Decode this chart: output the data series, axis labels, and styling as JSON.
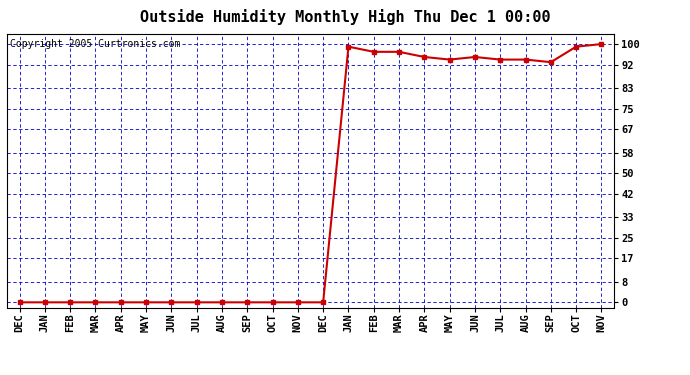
{
  "title": "Outside Humidity Monthly High Thu Dec 1 00:00",
  "copyright": "Copyright 2005 Curtronics.com",
  "x_labels": [
    "DEC",
    "JAN",
    "FEB",
    "MAR",
    "APR",
    "MAY",
    "JUN",
    "JUL",
    "AUG",
    "SEP",
    "OCT",
    "NOV",
    "DEC",
    "JAN",
    "FEB",
    "MAR",
    "APR",
    "MAY",
    "JUN",
    "JUL",
    "AUG",
    "SEP",
    "OCT",
    "NOV"
  ],
  "y_values": [
    0,
    0,
    0,
    0,
    0,
    0,
    0,
    0,
    0,
    0,
    0,
    0,
    0,
    99,
    97,
    97,
    95,
    94,
    95,
    94,
    94,
    93,
    99,
    100
  ],
  "yticks": [
    0,
    8,
    17,
    25,
    33,
    42,
    50,
    58,
    67,
    75,
    83,
    92,
    100
  ],
  "line_color": "#cc0000",
  "marker": "s",
  "marker_size": 2.5,
  "bg_color": "#ffffff",
  "plot_bg_color": "#ffffff",
  "grid_color": "#0000cc",
  "title_fontsize": 11,
  "copyright_fontsize": 7,
  "tick_fontsize": 7.5,
  "ylim": [
    -2,
    104
  ],
  "border_color": "#000000"
}
